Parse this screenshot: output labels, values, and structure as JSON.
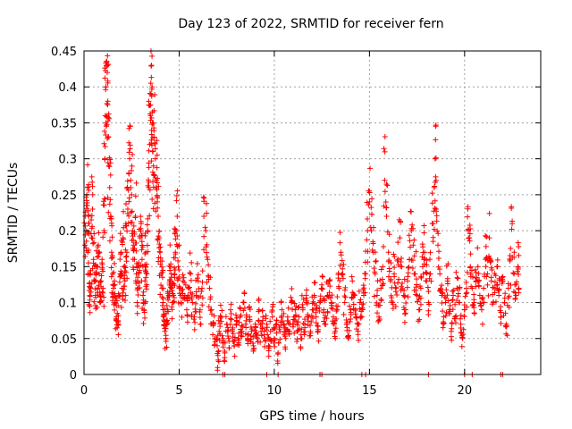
{
  "chart_data": {
    "type": "scatter",
    "title": "Day 123 of 2022, SRMTID for receiver fern",
    "xlabel": "GPS time / hours",
    "ylabel": "SRMTID / TECUs",
    "xlim": [
      0,
      24
    ],
    "ylim": [
      0,
      0.45
    ],
    "x_ticks": [
      0,
      5,
      10,
      15,
      20
    ],
    "x_tick_labels": [
      "0",
      "5",
      "10",
      "15",
      "20"
    ],
    "y_ticks": [
      0,
      0.05,
      0.1,
      0.15,
      0.2,
      0.25,
      0.3,
      0.35,
      0.4,
      0.45
    ],
    "y_tick_labels": [
      "0",
      "0.05",
      "0.1",
      "0.15",
      "0.2",
      "0.25",
      "0.3",
      "0.35",
      "0.4",
      "0.45"
    ],
    "grid": true,
    "legend": "none",
    "marker": "plus",
    "color": "#ff0000",
    "series": [
      {
        "points": [
          [
            0.05,
            0.18
          ],
          [
            0.1,
            0.2
          ],
          [
            0.15,
            0.25
          ],
          [
            0.2,
            0.26
          ],
          [
            0.2,
            0.17
          ],
          [
            0.25,
            0.22
          ],
          [
            0.3,
            0.14
          ],
          [
            0.3,
            0.095
          ],
          [
            0.35,
            0.12
          ],
          [
            0.4,
            0.19
          ],
          [
            0.45,
            0.23
          ],
          [
            0.5,
            0.16
          ],
          [
            0.55,
            0.13
          ],
          [
            0.6,
            0.11
          ],
          [
            0.65,
            0.15
          ],
          [
            0.7,
            0.12
          ],
          [
            0.75,
            0.18
          ],
          [
            0.8,
            0.14
          ],
          [
            0.85,
            0.1
          ],
          [
            0.9,
            0.13
          ],
          [
            0.95,
            0.16
          ],
          [
            1.0,
            0.12
          ],
          [
            1.05,
            0.2
          ],
          [
            1.1,
            0.3
          ],
          [
            1.12,
            0.36
          ],
          [
            1.15,
            0.4
          ],
          [
            1.18,
            0.43
          ],
          [
            1.2,
            0.435
          ],
          [
            1.22,
            0.42
          ],
          [
            1.25,
            0.38
          ],
          [
            1.28,
            0.33
          ],
          [
            1.3,
            0.29
          ],
          [
            1.35,
            0.26
          ],
          [
            1.4,
            0.22
          ],
          [
            1.45,
            0.17
          ],
          [
            1.5,
            0.14
          ],
          [
            1.55,
            0.12
          ],
          [
            1.6,
            0.13
          ],
          [
            1.65,
            0.1
          ],
          [
            1.7,
            0.08
          ],
          [
            1.75,
            0.085
          ],
          [
            1.8,
            0.07
          ],
          [
            1.85,
            0.11
          ],
          [
            1.9,
            0.14
          ],
          [
            1.95,
            0.17
          ],
          [
            2.0,
            0.12
          ],
          [
            2.05,
            0.19
          ],
          [
            2.1,
            0.15
          ],
          [
            2.15,
            0.13
          ],
          [
            2.2,
            0.21
          ],
          [
            2.25,
            0.17
          ],
          [
            2.3,
            0.23
          ],
          [
            2.35,
            0.28
          ],
          [
            2.4,
            0.3
          ],
          [
            2.45,
            0.27
          ],
          [
            2.5,
            0.25
          ],
          [
            2.55,
            0.2
          ],
          [
            2.6,
            0.18
          ],
          [
            2.65,
            0.16
          ],
          [
            2.7,
            0.22
          ],
          [
            2.75,
            0.14
          ],
          [
            2.8,
            0.1
          ],
          [
            2.85,
            0.12
          ],
          [
            2.9,
            0.15
          ],
          [
            2.95,
            0.19
          ],
          [
            3.0,
            0.21
          ],
          [
            3.05,
            0.16
          ],
          [
            3.1,
            0.11
          ],
          [
            3.15,
            0.09
          ],
          [
            3.2,
            0.13
          ],
          [
            3.25,
            0.17
          ],
          [
            3.3,
            0.14
          ],
          [
            3.35,
            0.2
          ],
          [
            3.4,
            0.26
          ],
          [
            3.45,
            0.32
          ],
          [
            3.5,
            0.36
          ],
          [
            3.52,
            0.39
          ],
          [
            3.55,
            0.43
          ],
          [
            3.58,
            0.4
          ],
          [
            3.6,
            0.35
          ],
          [
            3.62,
            0.31
          ],
          [
            3.65,
            0.29
          ],
          [
            3.7,
            0.33
          ],
          [
            3.75,
            0.3
          ],
          [
            3.8,
            0.27
          ],
          [
            3.85,
            0.24
          ],
          [
            3.9,
            0.22
          ],
          [
            3.95,
            0.19
          ],
          [
            4.0,
            0.17
          ],
          [
            4.05,
            0.14
          ],
          [
            4.1,
            0.12
          ],
          [
            4.15,
            0.1
          ],
          [
            4.2,
            0.08
          ],
          [
            4.25,
            0.06
          ],
          [
            4.3,
            0.05
          ],
          [
            4.35,
            0.07
          ],
          [
            4.4,
            0.09
          ],
          [
            4.45,
            0.11
          ],
          [
            4.5,
            0.13
          ],
          [
            4.55,
            0.15
          ],
          [
            4.6,
            0.12
          ],
          [
            4.65,
            0.1
          ],
          [
            4.7,
            0.11
          ],
          [
            4.75,
            0.14
          ],
          [
            4.8,
            0.17
          ],
          [
            4.85,
            0.2
          ],
          [
            4.9,
            0.22
          ],
          [
            4.95,
            0.15
          ],
          [
            5.0,
            0.12
          ],
          [
            5.1,
            0.1
          ],
          [
            5.2,
            0.13
          ],
          [
            5.3,
            0.11
          ],
          [
            5.4,
            0.09
          ],
          [
            5.5,
            0.12
          ],
          [
            5.6,
            0.14
          ],
          [
            5.7,
            0.1
          ],
          [
            5.8,
            0.08
          ],
          [
            5.9,
            0.11
          ],
          [
            6.0,
            0.13
          ],
          [
            6.1,
            0.09
          ],
          [
            6.2,
            0.12
          ],
          [
            6.3,
            0.22
          ],
          [
            6.4,
            0.2
          ],
          [
            6.5,
            0.16
          ],
          [
            6.6,
            0.12
          ],
          [
            6.7,
            0.09
          ],
          [
            6.8,
            0.07
          ],
          [
            6.9,
            0.05
          ],
          [
            7.0,
            0.04
          ],
          [
            7.05,
            0.02
          ],
          [
            7.1,
            0.06
          ],
          [
            7.2,
            0.08
          ],
          [
            7.3,
            0.05
          ],
          [
            7.4,
            0.03
          ],
          [
            7.5,
            0.07
          ],
          [
            7.6,
            0.05
          ],
          [
            7.7,
            0.09
          ],
          [
            7.8,
            0.06
          ],
          [
            7.9,
            0.04
          ],
          [
            8.0,
            0.07
          ],
          [
            8.1,
            0.05
          ],
          [
            8.2,
            0.08
          ],
          [
            8.3,
            0.06
          ],
          [
            8.4,
            0.1
          ],
          [
            8.5,
            0.07
          ],
          [
            8.6,
            0.05
          ],
          [
            8.7,
            0.08
          ],
          [
            8.8,
            0.06
          ],
          [
            8.9,
            0.04
          ],
          [
            9.0,
            0.07
          ],
          [
            9.1,
            0.05
          ],
          [
            9.2,
            0.09
          ],
          [
            9.3,
            0.06
          ],
          [
            9.4,
            0.08
          ],
          [
            9.5,
            0.05
          ],
          [
            9.6,
            0.07
          ],
          [
            9.7,
            0.04
          ],
          [
            9.8,
            0.06
          ],
          [
            9.9,
            0.08
          ],
          [
            10.0,
            0.05
          ],
          [
            10.1,
            0.07
          ],
          [
            10.2,
            0.03
          ],
          [
            10.3,
            0.06
          ],
          [
            10.4,
            0.09
          ],
          [
            10.5,
            0.07
          ],
          [
            10.6,
            0.05
          ],
          [
            10.7,
            0.08
          ],
          [
            10.8,
            0.06
          ],
          [
            10.9,
            0.1
          ],
          [
            11.0,
            0.07
          ],
          [
            11.1,
            0.09
          ],
          [
            11.2,
            0.06
          ],
          [
            11.3,
            0.08
          ],
          [
            11.4,
            0.05
          ],
          [
            11.5,
            0.09
          ],
          [
            11.6,
            0.07
          ],
          [
            11.7,
            0.1
          ],
          [
            11.8,
            0.08
          ],
          [
            11.9,
            0.06
          ],
          [
            12.0,
            0.09
          ],
          [
            12.1,
            0.11
          ],
          [
            12.2,
            0.08
          ],
          [
            12.3,
            0.06
          ],
          [
            12.4,
            0.1
          ],
          [
            12.5,
            0.12
          ],
          [
            12.6,
            0.09
          ],
          [
            12.7,
            0.07
          ],
          [
            12.8,
            0.11
          ],
          [
            12.9,
            0.13
          ],
          [
            13.0,
            0.1
          ],
          [
            13.1,
            0.08
          ],
          [
            13.2,
            0.06
          ],
          [
            13.3,
            0.09
          ],
          [
            13.4,
            0.12
          ],
          [
            13.5,
            0.17
          ],
          [
            13.6,
            0.14
          ],
          [
            13.7,
            0.1
          ],
          [
            13.8,
            0.07
          ],
          [
            13.9,
            0.05
          ],
          [
            14.0,
            0.09
          ],
          [
            14.1,
            0.13
          ],
          [
            14.2,
            0.11
          ],
          [
            14.3,
            0.08
          ],
          [
            14.4,
            0.06
          ],
          [
            14.5,
            0.1
          ],
          [
            14.6,
            0.08
          ],
          [
            14.7,
            0.11
          ],
          [
            14.8,
            0.14
          ],
          [
            14.9,
            0.2
          ],
          [
            15.0,
            0.24
          ],
          [
            15.1,
            0.2
          ],
          [
            15.2,
            0.17
          ],
          [
            15.3,
            0.14
          ],
          [
            15.4,
            0.11
          ],
          [
            15.5,
            0.08
          ],
          [
            15.6,
            0.12
          ],
          [
            15.7,
            0.15
          ],
          [
            15.8,
            0.27
          ],
          [
            15.9,
            0.22
          ],
          [
            16.0,
            0.17
          ],
          [
            16.1,
            0.13
          ],
          [
            16.2,
            0.1
          ],
          [
            16.3,
            0.14
          ],
          [
            16.4,
            0.12
          ],
          [
            16.5,
            0.16
          ],
          [
            16.6,
            0.19
          ],
          [
            16.7,
            0.15
          ],
          [
            16.8,
            0.11
          ],
          [
            16.9,
            0.09
          ],
          [
            17.0,
            0.13
          ],
          [
            17.1,
            0.16
          ],
          [
            17.2,
            0.2
          ],
          [
            17.3,
            0.18
          ],
          [
            17.4,
            0.14
          ],
          [
            17.5,
            0.11
          ],
          [
            17.6,
            0.09
          ],
          [
            17.7,
            0.12
          ],
          [
            17.8,
            0.15
          ],
          [
            17.9,
            0.17
          ],
          [
            18.0,
            0.13
          ],
          [
            18.1,
            0.1
          ],
          [
            18.2,
            0.14
          ],
          [
            18.3,
            0.21
          ],
          [
            18.4,
            0.26
          ],
          [
            18.45,
            0.3
          ],
          [
            18.5,
            0.23
          ],
          [
            18.6,
            0.18
          ],
          [
            18.7,
            0.14
          ],
          [
            18.8,
            0.11
          ],
          [
            18.9,
            0.08
          ],
          [
            19.0,
            0.1
          ],
          [
            19.1,
            0.13
          ],
          [
            19.2,
            0.09
          ],
          [
            19.3,
            0.06
          ],
          [
            19.4,
            0.11
          ],
          [
            19.5,
            0.08
          ],
          [
            19.6,
            0.12
          ],
          [
            19.7,
            0.1
          ],
          [
            19.8,
            0.07
          ],
          [
            19.9,
            0.05
          ],
          [
            20.0,
            0.09
          ],
          [
            20.1,
            0.12
          ],
          [
            20.2,
            0.2
          ],
          [
            20.25,
            0.19
          ],
          [
            20.3,
            0.15
          ],
          [
            20.4,
            0.12
          ],
          [
            20.5,
            0.1
          ],
          [
            20.6,
            0.13
          ],
          [
            20.7,
            0.15
          ],
          [
            20.8,
            0.11
          ],
          [
            20.9,
            0.09
          ],
          [
            21.0,
            0.12
          ],
          [
            21.1,
            0.16
          ],
          [
            21.2,
            0.14
          ],
          [
            21.3,
            0.19
          ],
          [
            21.4,
            0.13
          ],
          [
            21.5,
            0.1
          ],
          [
            21.6,
            0.12
          ],
          [
            21.7,
            0.15
          ],
          [
            21.8,
            0.11
          ],
          [
            21.9,
            0.08
          ],
          [
            22.0,
            0.13
          ],
          [
            22.1,
            0.1
          ],
          [
            22.2,
            0.07
          ],
          [
            22.3,
            0.12
          ],
          [
            22.4,
            0.16
          ],
          [
            22.5,
            0.21
          ],
          [
            22.6,
            0.14
          ],
          [
            22.7,
            0.11
          ],
          [
            22.8,
            0.15
          ],
          [
            22.85,
            0.12
          ]
        ]
      }
    ],
    "zero_points_x": [
      7.3,
      7.4,
      9.6,
      10.2,
      12.4,
      12.5,
      14.6,
      14.8,
      18.1,
      20.0,
      20.4,
      21.9,
      22.0
    ]
  }
}
